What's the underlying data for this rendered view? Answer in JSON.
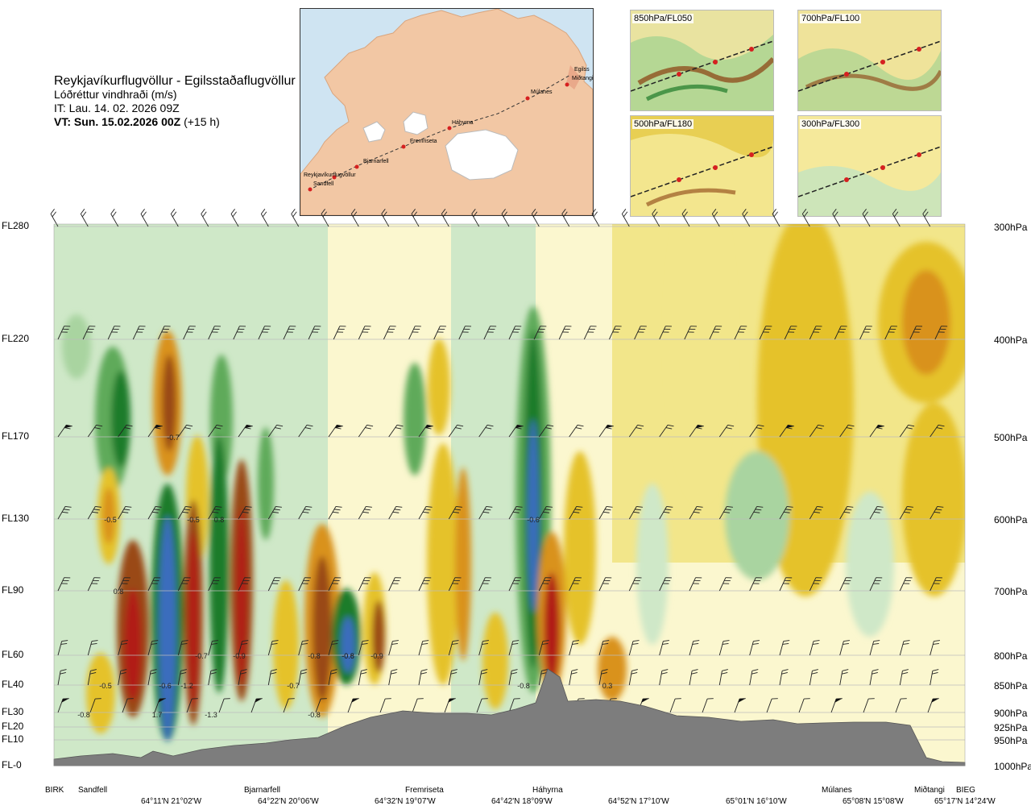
{
  "header": {
    "title": "Reykjavíkurflugvöllur - Egilsstaðaflugvöllur",
    "subtitle": "Lóðréttur vindhraði (m/s)",
    "issue_time": "IT: Lau. 14. 02. 2026 09Z",
    "valid_time": "VT: Sun. 15.02.2026 00Z",
    "lead": "(+15 h)"
  },
  "map": {
    "places": [
      "Reykjavíkurflugvöllur",
      "Sandfell",
      "Bjarnarfell",
      "Fremriseta",
      "Háhyrna",
      "Múlanes",
      "Miðtangi",
      "Egilss"
    ]
  },
  "thumbnails": [
    {
      "label": "850hPa/FL050"
    },
    {
      "label": "700hPa/FL100"
    },
    {
      "label": "500hPa/FL180"
    },
    {
      "label": "300hPa/FL300"
    }
  ],
  "chart_data": {
    "type": "heatmap",
    "title": "Lóðréttur vindhraði (m/s)",
    "left_axis": {
      "labels": [
        "FL280",
        "FL220",
        "FL170",
        "FL130",
        "FL90",
        "FL60",
        "FL40",
        "FL30",
        "FL20",
        "FL10",
        "FL-0"
      ]
    },
    "right_axis": {
      "labels": [
        "300hPa",
        "400hPa",
        "500hPa",
        "600hPa",
        "700hPa",
        "800hPa",
        "850hPa",
        "900hPa",
        "925hPa",
        "950hPa",
        "1000hPa"
      ]
    },
    "stations": [
      "BIRK",
      "Sandfell",
      "Bjarnarfell",
      "Fremriseta",
      "Háhyrna",
      "Múlanes",
      "Miðtangi",
      "BIEG"
    ],
    "coordinates": [
      "64°11'N 21°02'W",
      "64°22'N 20°06'W",
      "64°32'N 19°07'W",
      "64°42'N 18°09'W",
      "64°52'N 17°10'W",
      "65°01'N 16°10'W",
      "65°08'N 15°08'W",
      "65°17'N 14°24'W"
    ],
    "contour_labels": [
      "-0.7",
      "-0.5",
      "-0.5",
      "0.8",
      "0.8",
      "-0.7",
      "-0.9",
      "-0.8",
      "-0.8",
      "-0.9",
      "-0.7",
      "-0.5",
      "-0.6",
      "-1.2",
      "1.7",
      "-1.3",
      "-0.8",
      "-0.8",
      "-0.6",
      "-0.8",
      "0.3",
      "-0.6"
    ],
    "colors": {
      "strong_up": "#3b6dbd",
      "up_dark": "#1e7b2a",
      "up_mid": "#5faa5a",
      "up_light": "#a9d4a0",
      "weak": "#cfe8c8",
      "neutral": "#fbf7cf",
      "down_light": "#f2e68a",
      "down_mid": "#e5c22a",
      "down_dark": "#d9921d",
      "down_strong": "#9a4a12",
      "down_extreme": "#b11a14",
      "terrain": "#7d7d7d"
    }
  }
}
